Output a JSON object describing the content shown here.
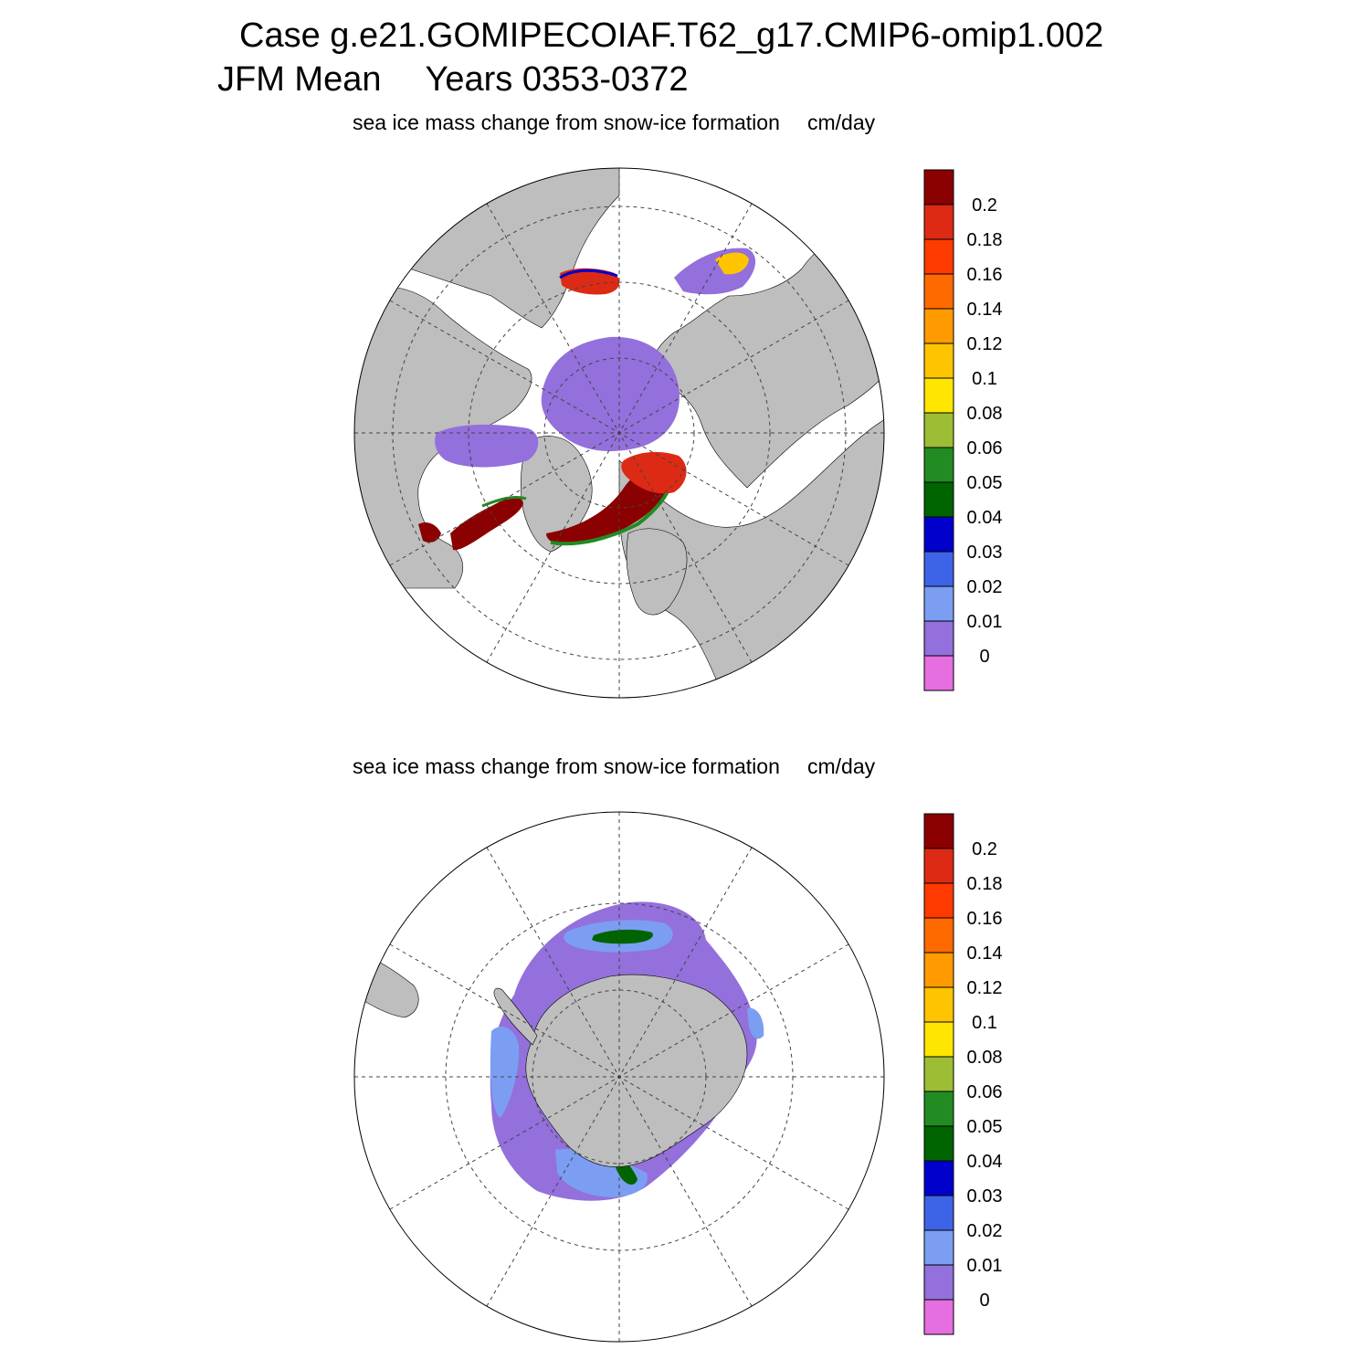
{
  "title": {
    "case_line": "Case g.e21.GOMIPECOIAF.T62_g17.CMIP6-omip1.002",
    "period": "JFM Mean",
    "years": "Years 0353-0372"
  },
  "panels": [
    {
      "id": "north",
      "label": "sea ice mass change from snow-ice formation",
      "units": "cm/day"
    },
    {
      "id": "south",
      "label": "sea ice mass change from snow-ice formation",
      "units": "cm/day"
    }
  ],
  "colorbar": {
    "labels": [
      "0.2",
      "0.18",
      "0.16",
      "0.14",
      "0.12",
      "0.1",
      "0.08",
      "0.06",
      "0.05",
      "0.04",
      "0.03",
      "0.02",
      "0.01",
      "0"
    ],
    "colors": [
      "#8b0000",
      "#dd2a14",
      "#ff3a00",
      "#ff6a00",
      "#ff9a00",
      "#ffc400",
      "#ffe600",
      "#9cbd34",
      "#228b22",
      "#006400",
      "#0000cd",
      "#3d64e6",
      "#7b9ef2",
      "#9370db",
      "#e56ee0"
    ]
  },
  "colors": {
    "land": "#bebebe",
    "ocean": "#ffffff"
  }
}
